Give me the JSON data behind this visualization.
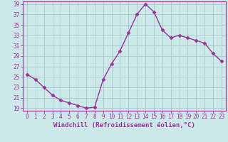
{
  "x": [
    0,
    1,
    2,
    3,
    4,
    5,
    6,
    7,
    8,
    9,
    10,
    11,
    12,
    13,
    14,
    15,
    16,
    17,
    18,
    19,
    20,
    21,
    22,
    23
  ],
  "y": [
    25.5,
    24.5,
    23.0,
    21.5,
    20.5,
    20.0,
    19.5,
    19.0,
    19.2,
    24.5,
    27.5,
    30.0,
    33.5,
    37.0,
    39.0,
    37.5,
    34.0,
    32.5,
    33.0,
    32.5,
    32.0,
    31.5,
    29.5,
    28.0
  ],
  "line_color": "#993399",
  "marker": "D",
  "markersize": 2.5,
  "linewidth": 1.0,
  "bg_color": "#cce8e8",
  "grid_color": "#aacece",
  "xlabel": "Windchill (Refroidissement éolien,°C)",
  "xlabel_color": "#993399",
  "xlabel_fontsize": 6.5,
  "tick_color": "#993399",
  "tick_fontsize": 5.5,
  "ytick_step": 2,
  "ymin": 19,
  "ymax": 39,
  "xmin": 0,
  "xmax": 23
}
